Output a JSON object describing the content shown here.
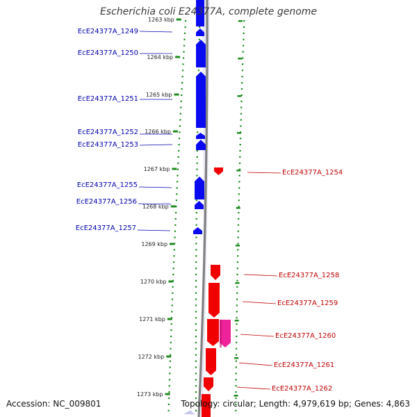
{
  "title": "Escherichia coli E24377A, complete genome",
  "footer": {
    "accession": "Accession: NC_009801",
    "summary": "Topology: circular; Length: 4,979,619 bp; Genes: 4,863"
  },
  "colors": {
    "forward_strand": "#0a0af0",
    "reverse_strand": "#f00000",
    "highlight": "#ee2299",
    "backbone": "#808080",
    "tick_marks": "#1d8a1d",
    "forward_label": "#0000b0",
    "reverse_label": "#c00000"
  },
  "kbp_ticks": [
    {
      "label": "1263 kbp"
    },
    {
      "label": "1264 kbp"
    },
    {
      "label": "1265 kbp"
    },
    {
      "label": "1266 kbp"
    },
    {
      "label": "1267 kbp"
    },
    {
      "label": "1268 kbp"
    },
    {
      "label": "1269 kbp"
    },
    {
      "label": "1270 kbp"
    },
    {
      "label": "1271 kbp"
    },
    {
      "label": "1272 kbp"
    },
    {
      "label": "1273 kbp"
    }
  ],
  "genes_forward": [
    {
      "label": "EcE24377A_1249"
    },
    {
      "label": "EcE24377A_1250"
    },
    {
      "label": "EcE24377A_1251"
    },
    {
      "label": "EcE24377A_1252"
    },
    {
      "label": "EcE24377A_1253"
    },
    {
      "label": "EcE24377A_1255"
    },
    {
      "label": "EcE24377A_1256"
    },
    {
      "label": "EcE24377A_1257"
    }
  ],
  "genes_reverse": [
    {
      "label": "EcE24377A_1254"
    },
    {
      "label": "EcE24377A_1258"
    },
    {
      "label": "EcE24377A_1259"
    },
    {
      "label": "EcE24377A_1260"
    },
    {
      "label": "EcE24377A_1261"
    },
    {
      "label": "EcE24377A_1262"
    }
  ]
}
